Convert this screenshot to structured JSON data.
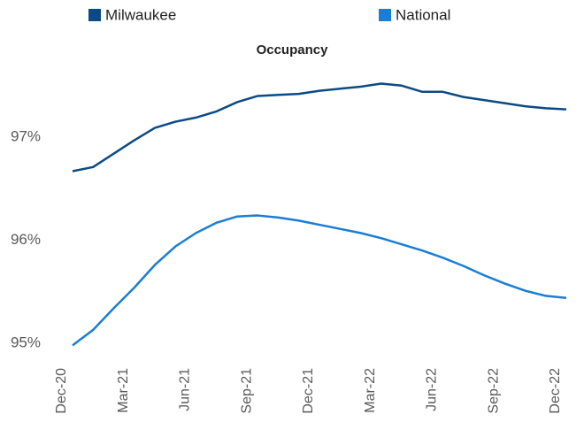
{
  "chart_data": {
    "type": "line",
    "title": "Occupancy",
    "categories": [
      "Dec-20",
      null,
      null,
      "Mar-21",
      null,
      null,
      "Jun-21",
      null,
      null,
      "Sep-21",
      null,
      null,
      "Dec-21",
      null,
      null,
      "Mar-22",
      null,
      null,
      "Jun-22",
      null,
      null,
      "Sep-22",
      null,
      null,
      "Dec-22"
    ],
    "series": [
      {
        "name": "Milwaukee",
        "color": "#0b4a85",
        "values": [
          96.67,
          96.71,
          96.84,
          96.97,
          97.09,
          97.15,
          97.19,
          97.25,
          97.34,
          97.4,
          97.41,
          97.42,
          97.45,
          97.47,
          97.49,
          97.52,
          97.5,
          97.44,
          97.44,
          97.39,
          97.36,
          97.33,
          97.3,
          97.28,
          97.27
        ]
      },
      {
        "name": "National",
        "color": "#1a7dd6",
        "values": [
          94.98,
          95.13,
          95.34,
          95.54,
          95.76,
          95.94,
          96.07,
          96.17,
          96.23,
          96.24,
          96.22,
          96.19,
          96.15,
          96.11,
          96.07,
          96.02,
          95.96,
          95.9,
          95.83,
          95.75,
          95.66,
          95.58,
          95.51,
          95.46,
          95.44
        ]
      }
    ],
    "ylim": [
      94.8,
      97.7
    ],
    "yticks": [
      {
        "value": 95,
        "label": "95%"
      },
      {
        "value": 96,
        "label": "96%"
      },
      {
        "value": 97,
        "label": "97%"
      }
    ],
    "grid": false,
    "legend": "top"
  }
}
